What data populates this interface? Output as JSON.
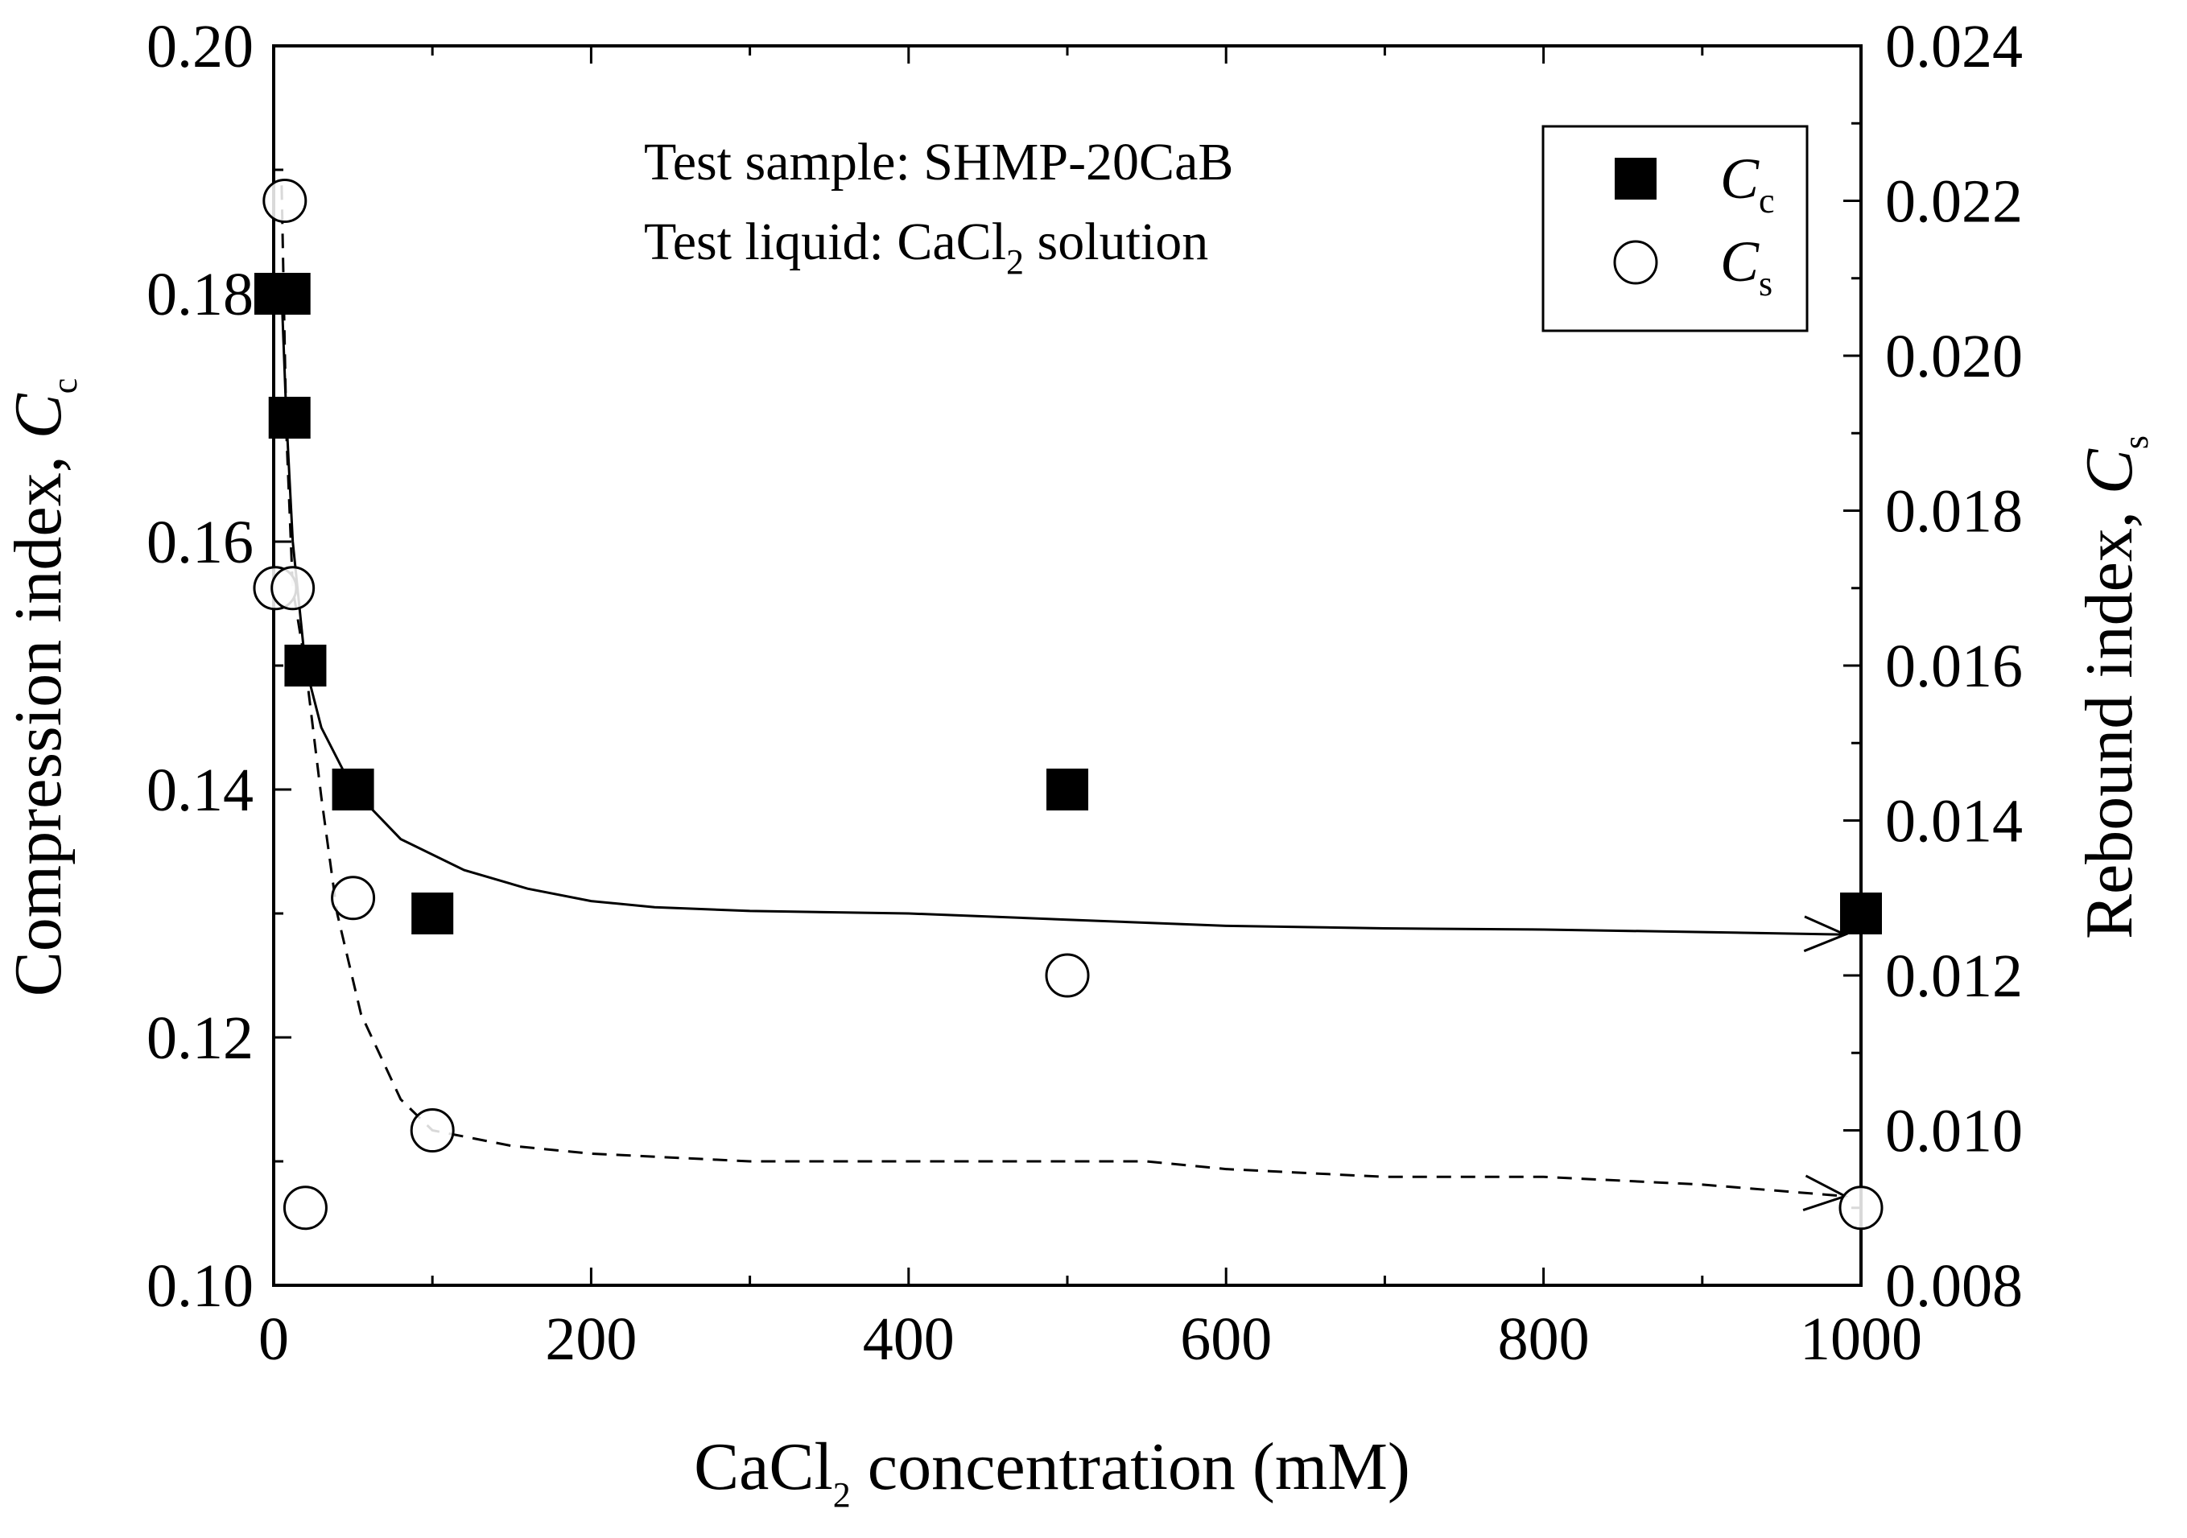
{
  "chart_data": {
    "type": "scatter",
    "xlabel": "CaCl2 concentration (mM)",
    "xlabel_parts": {
      "pre": "CaCl",
      "sub": "2",
      "post": " concentration (mM)"
    },
    "ylabel_left": {
      "text": "Compression index, ",
      "symbol": "C",
      "sub": "c"
    },
    "ylabel_right": {
      "text": "Rebound index, ",
      "symbol": "C",
      "sub": "s"
    },
    "xlim": [
      0,
      1000
    ],
    "ylim_left": [
      0.1,
      0.2
    ],
    "ylim_right": [
      0.008,
      0.024
    ],
    "x_ticks": [
      "0",
      "200",
      "400",
      "600",
      "800",
      "1000"
    ],
    "y_left_ticks": [
      "0.10",
      "0.12",
      "0.14",
      "0.16",
      "0.18",
      "0.20"
    ],
    "y_right_ticks": [
      "0.008",
      "0.010",
      "0.012",
      "0.014",
      "0.016",
      "0.018",
      "0.020",
      "0.022",
      "0.024"
    ],
    "annotations": [
      {
        "text": "Test sample: SHMP-20CaB"
      },
      {
        "pre": "Test liquid: CaCl",
        "sub": "2",
        "post": " solution"
      }
    ],
    "legend_position": "top-right",
    "series": [
      {
        "name": "Cc",
        "symbol": "C",
        "sub": "c",
        "axis": "left",
        "marker": "filled-square",
        "points": [
          [
            1,
            0.18
          ],
          [
            10,
            0.18
          ],
          [
            10,
            0.17
          ],
          [
            20,
            0.15
          ],
          [
            50,
            0.14
          ],
          [
            100,
            0.13
          ],
          [
            500,
            0.14
          ],
          [
            1000,
            0.13
          ]
        ],
        "trend": {
          "style": "solid",
          "points": [
            [
              5,
              0.18
            ],
            [
              8,
              0.17
            ],
            [
              12,
              0.16
            ],
            [
              20,
              0.15
            ],
            [
              30,
              0.145
            ],
            [
              50,
              0.14
            ],
            [
              80,
              0.136
            ],
            [
              120,
              0.1335
            ],
            [
              160,
              0.132
            ],
            [
              200,
              0.131
            ],
            [
              240,
              0.1305
            ],
            [
              300,
              0.1302
            ],
            [
              400,
              0.13
            ],
            [
              500,
              0.1295
            ],
            [
              600,
              0.129
            ],
            [
              700,
              0.1288
            ],
            [
              800,
              0.1287
            ],
            [
              900,
              0.1285
            ],
            [
              990,
              0.1283
            ]
          ]
        }
      },
      {
        "name": "Cs",
        "symbol": "C",
        "sub": "s",
        "axis": "right",
        "marker": "open-circle",
        "points": [
          [
            1,
            0.017
          ],
          [
            7,
            0.022
          ],
          [
            12,
            0.017
          ],
          [
            20,
            0.009
          ],
          [
            50,
            0.013
          ],
          [
            100,
            0.01
          ],
          [
            500,
            0.012
          ],
          [
            1000,
            0.009
          ]
        ],
        "trend": {
          "style": "dashed",
          "points": [
            [
              5,
              0.0222
            ],
            [
              8,
              0.019
            ],
            [
              12,
              0.017
            ],
            [
              20,
              0.016
            ],
            [
              30,
              0.0143
            ],
            [
              40,
              0.0128
            ],
            [
              55,
              0.0115
            ],
            [
              80,
              0.0104
            ],
            [
              100,
              0.01
            ],
            [
              150,
              0.0098
            ],
            [
              200,
              0.0097
            ],
            [
              300,
              0.0096
            ],
            [
              400,
              0.0096
            ],
            [
              500,
              0.0096
            ],
            [
              550,
              0.0096
            ],
            [
              600,
              0.0095
            ],
            [
              700,
              0.0094
            ],
            [
              800,
              0.0094
            ],
            [
              900,
              0.0093
            ],
            [
              990,
              0.00915
            ]
          ]
        }
      }
    ]
  }
}
